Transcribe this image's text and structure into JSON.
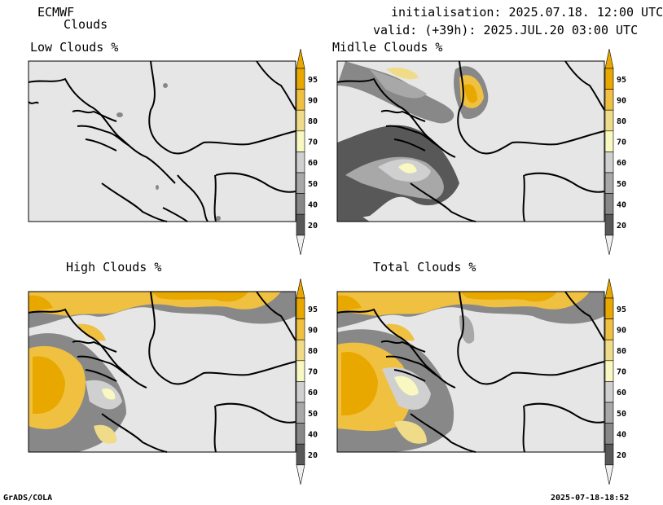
{
  "header": {
    "model": "ECMWF",
    "field": "Clouds",
    "init": "initialisation: 2025.07.18. 12:00 UTC",
    "valid": "valid: (+39h): 2025.JUL.20 03:00 UTC"
  },
  "panels": [
    {
      "id": "low",
      "title": "Low Clouds %"
    },
    {
      "id": "mid",
      "title": "Midlle Clouds %"
    },
    {
      "id": "high",
      "title": "High Clouds %"
    },
    {
      "id": "total",
      "title": "Total Clouds %"
    }
  ],
  "colorbar": {
    "labels": [
      "95",
      "90",
      "80",
      "70",
      "60",
      "50",
      "40",
      "20"
    ],
    "colors": [
      "#e8a800",
      "#f0c040",
      "#f0dc88",
      "#f8f8c0",
      "#d0d0d0",
      "#a8a8a8",
      "#888888",
      "#585858"
    ],
    "top_color": "#e8a800",
    "bottom_color": "#f0f0f0"
  },
  "footer": {
    "left": "GrADS/COLA",
    "right": "2025-07-18-18:52"
  }
}
